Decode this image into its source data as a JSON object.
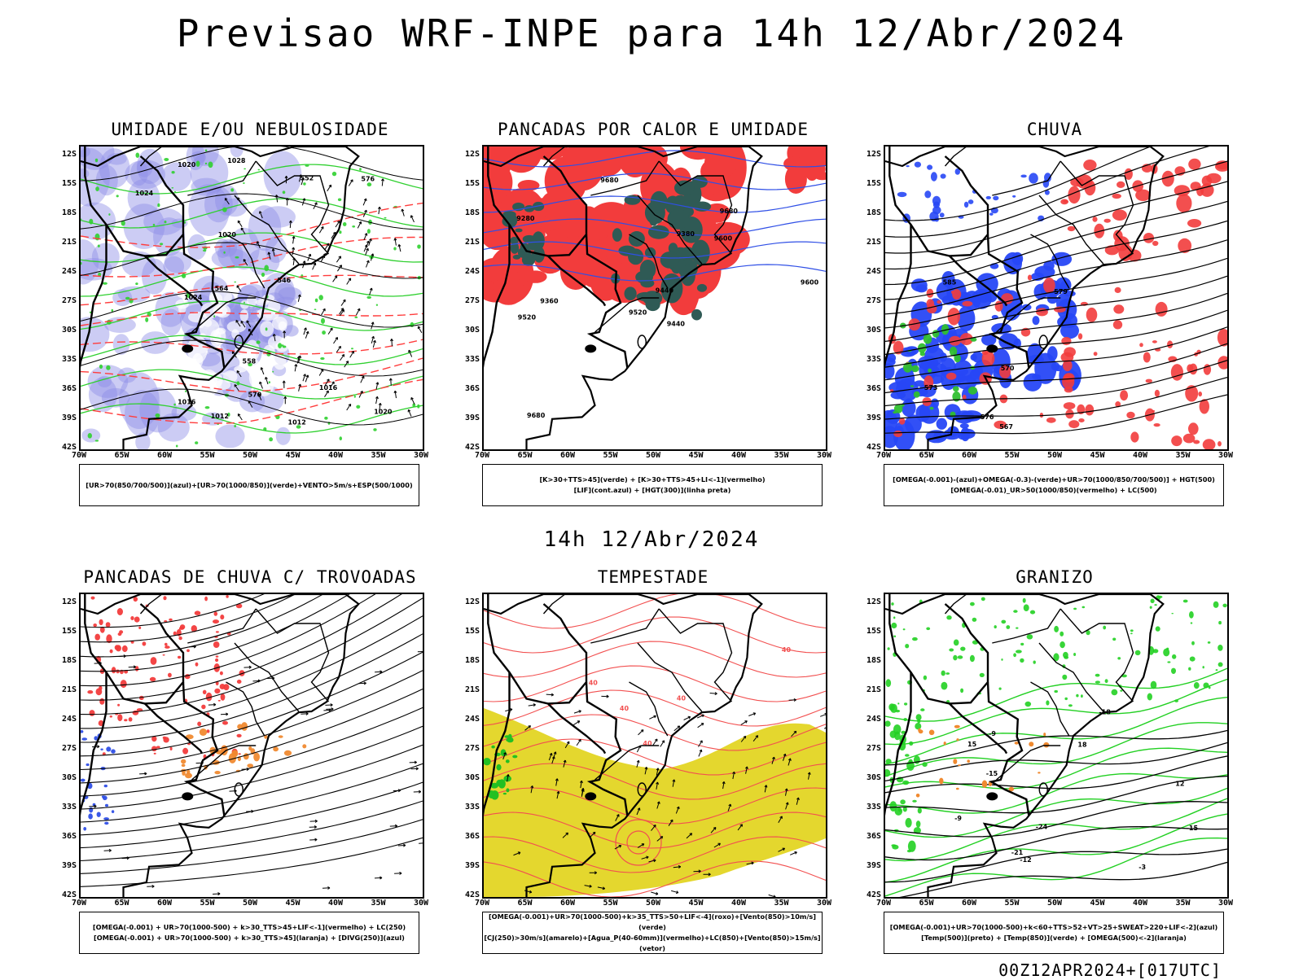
{
  "header": {
    "title": "Previsao WRF-INPE  para 14h 12/Abr/2024"
  },
  "mid_title": "14h 12/Abr/2024",
  "footer": "00Z12APR2024+[017UTC]",
  "axes": {
    "lat_labels": [
      "12S",
      "15S",
      "18S",
      "21S",
      "24S",
      "27S",
      "30S",
      "33S",
      "36S",
      "39S",
      "42S"
    ],
    "lon_labels": [
      "70W",
      "65W",
      "60W",
      "55W",
      "50W",
      "45W",
      "40W",
      "35W",
      "30W"
    ]
  },
  "panels": [
    {
      "id": "umidade",
      "title": "UMIDADE E/OU NEBULOSIDADE",
      "legend": [
        "[UR>70(850/700/500)](azul)+[UR>70(1000/850)](verde)+VENTO>5m/s+ESP(500/1000)"
      ],
      "contour_labels": [
        "1012",
        "1012",
        "1016",
        "1016",
        "1020",
        "1024",
        "1024",
        "1020",
        "1028",
        "1020",
        "576",
        "570",
        "564",
        "558",
        "552",
        "546"
      ],
      "colors": {
        "blue": "#8f8fe6",
        "green": "#2fd02f",
        "red": "#ff3c3c"
      }
    },
    {
      "id": "pancadas-calor",
      "title": "PANCADAS POR CALOR E UMIDADE",
      "legend": [
        "[K>30+TTS>45](verde) + [K>30+TTS>45+LI<-1](vermelho)",
        "[LIF](cont.azul) + [HGT(300)](linha preta)"
      ],
      "contour_labels": [
        "9680",
        "9680",
        "9600",
        "9520",
        "9440",
        "9360",
        "9280",
        "9600",
        "9520",
        "9380",
        "9440",
        "9680"
      ],
      "colors": {
        "red": "#f23c3c",
        "green": "#2f5a55",
        "blue": "#2f4fe6"
      }
    },
    {
      "id": "chuva",
      "title": "CHUVA",
      "legend": [
        "[OMEGA(-0.001)-(azul)+OMEGA(-0.3)-(verde)+UR>70(1000/850/700/500)] + HGT(500)",
        "[OMEGA(-0.01)_UR>50(1000/850)(vermelho) + LC(500)"
      ],
      "contour_labels": [
        "579",
        "576",
        "573",
        "570",
        "567",
        "585"
      ],
      "colors": {
        "blue": "#2747f5",
        "green": "#2fbf2f",
        "red": "#f23c3c"
      }
    },
    {
      "id": "trovoadas",
      "title": "PANCADAS DE CHUVA C/ TROVOADAS",
      "legend": [
        "[OMEGA(-0.001) + UR>70(1000-500) + k>30_TTS>45+LIF<-1](vermelho) + LC(250)",
        "[OMEGA(-0.001) + UR>70(1000-500) + k>30_TTS>45](laranja) + [DIVG(250)](azul)"
      ],
      "contour_labels": [],
      "colors": {
        "red": "#f23c3c",
        "orange": "#f08a30",
        "blue": "#2f4fe6"
      }
    },
    {
      "id": "tempestade",
      "title": "TEMPESTADE",
      "legend": [
        "[OMEGA(-0.001)+UR>70(1000-500)+k>35_TTS>50+LIF<-4](roxo)+[Vento(850)>10m/s](verde)",
        "[CJ(250)>30m/s](amarelo)+[Agua_P(40-60mm)](vermelho)+LC(850)+[Vento(850)>15m/s](vetor)"
      ],
      "contour_labels": [
        "40",
        "40",
        "40",
        "40",
        "40"
      ],
      "colors": {
        "yellow": "#e4d72e",
        "red": "#f25050",
        "green": "#22c022"
      }
    },
    {
      "id": "granizo",
      "title": "GRANIZO",
      "legend": [
        "[OMEGA(-0.001)+UR>70(1000-500)+k<60+TTS>52+VT>25+SWEAT>220+LIF<-2](azul)",
        "[Temp(500)](preto) + [Temp(850)](verde) + [OMEGA(500)<-2](laranja)"
      ],
      "contour_labels": [
        "-3",
        "-9",
        "-12",
        "-15",
        "-18",
        "-21",
        "-24",
        "12",
        "15",
        "18",
        "-9",
        "-15"
      ],
      "colors": {
        "green": "#22d022",
        "orange": "#f08a30"
      }
    }
  ]
}
